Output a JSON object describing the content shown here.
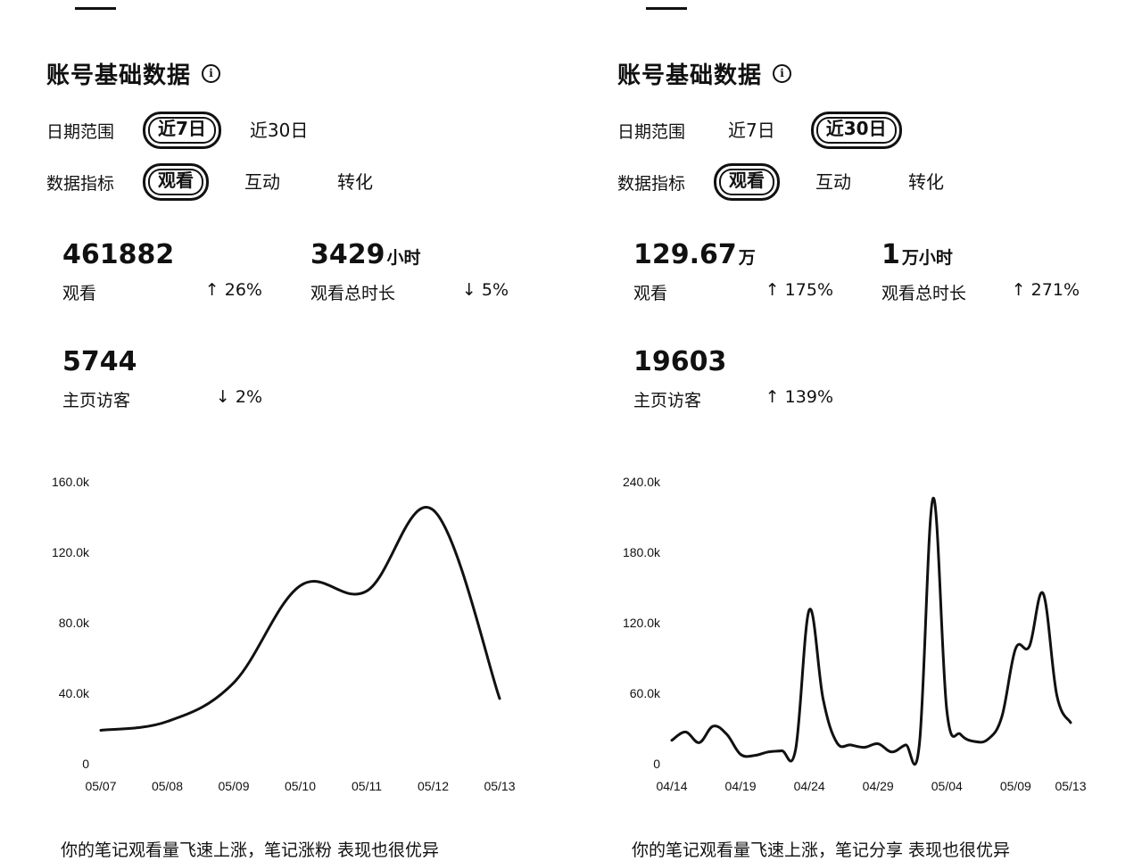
{
  "panels": [
    {
      "title": "账号基础数据",
      "info_icon": "info-icon",
      "date_filter": {
        "label": "日期范围",
        "options": [
          "近7日",
          "近30日"
        ],
        "selected": 0
      },
      "metric_filter": {
        "label": "数据指标",
        "options": [
          "观看",
          "互动",
          "转化"
        ],
        "selected": 0
      },
      "stats": [
        {
          "value": "461882",
          "unit": "",
          "label": "观看",
          "change": "↑ 26%"
        },
        {
          "value": "3429",
          "unit": "小时",
          "label": "观看总时长",
          "change": "↓ 5%"
        },
        {
          "value": "5744",
          "unit": "",
          "label": "主页访客",
          "change": "↓ 2%"
        }
      ],
      "footer": "你的笔记观看量飞速上涨，笔记涨粉 表现也很优异"
    },
    {
      "title": "账号基础数据",
      "info_icon": "info-icon",
      "date_filter": {
        "label": "日期范围",
        "options": [
          "近7日",
          "近30日"
        ],
        "selected": 1
      },
      "metric_filter": {
        "label": "数据指标",
        "options": [
          "观看",
          "互动",
          "转化"
        ],
        "selected": 0
      },
      "stats": [
        {
          "value": "129.67",
          "unit": "万",
          "label": "观看",
          "change": "↑ 175%"
        },
        {
          "value": "1",
          "unit": "万小时",
          "label": "观看总时长",
          "change": "↑ 271%"
        },
        {
          "value": "19603",
          "unit": "",
          "label": "主页访客",
          "change": "↑ 139%"
        }
      ],
      "footer": "你的笔记观看量飞速上涨，笔记分享 表现也很优异"
    }
  ],
  "chart_data": [
    {
      "type": "line",
      "ylim": [
        0,
        160000
      ],
      "y_ticks": [
        0,
        40000,
        80000,
        120000,
        160000
      ],
      "y_tick_labels": [
        "0",
        "40.0k",
        "80.0k",
        "120.0k",
        "160.0k"
      ],
      "x_tick_labels": [
        "05/07",
        "05/08",
        "05/09",
        "05/10",
        "05/11",
        "05/12",
        "05/13"
      ],
      "x": [
        "05/07",
        "05/08",
        "05/09",
        "05/10",
        "05/11",
        "05/12",
        "05/13"
      ],
      "series": [
        {
          "values": [
            19000,
            24000,
            46000,
            101000,
            98000,
            144000,
            37000
          ]
        }
      ]
    },
    {
      "type": "line",
      "ylim": [
        0,
        240000
      ],
      "y_ticks": [
        0,
        60000,
        120000,
        180000,
        240000
      ],
      "y_tick_labels": [
        "0",
        "60.0k",
        "120.0k",
        "180.0k",
        "240.0k"
      ],
      "x_tick_labels": [
        "04/14",
        "04/19",
        "04/24",
        "04/29",
        "05/04",
        "05/09",
        "05/13"
      ],
      "x": [
        "04/14",
        "04/15",
        "04/16",
        "04/17",
        "04/18",
        "04/19",
        "04/20",
        "04/21",
        "04/22",
        "04/23",
        "04/24",
        "04/25",
        "04/26",
        "04/27",
        "04/28",
        "04/29",
        "04/30",
        "05/01",
        "05/02",
        "05/03",
        "05/04",
        "05/05",
        "05/06",
        "05/07",
        "05/08",
        "05/09",
        "05/10",
        "05/11",
        "05/12",
        "05/13"
      ],
      "series": [
        {
          "values": [
            20000,
            27000,
            18000,
            32000,
            25000,
            8000,
            7000,
            10000,
            11000,
            12000,
            131000,
            55000,
            18000,
            16000,
            14000,
            17000,
            10000,
            16000,
            16000,
            226000,
            45000,
            25000,
            19000,
            21000,
            40000,
            98000,
            100000,
            145000,
            58000,
            35000
          ]
        }
      ]
    }
  ]
}
